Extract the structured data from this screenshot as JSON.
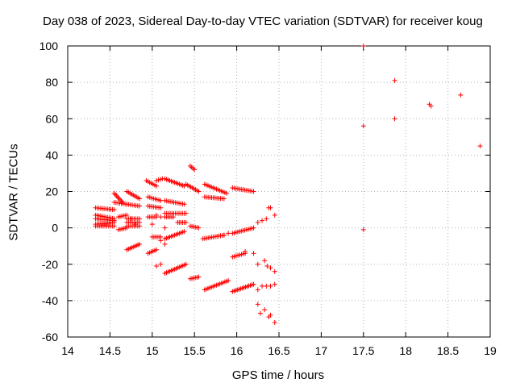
{
  "chart_data": {
    "type": "scatter",
    "title": "Day 038 of 2023, Sidereal Day-to-day VTEC variation (SDTVAR) for receiver koug",
    "xlabel": "GPS time / hours",
    "ylabel": "SDTVAR / TECUs",
    "xlim": [
      14,
      19
    ],
    "ylim": [
      -60,
      100
    ],
    "xticks": [
      14,
      14.5,
      15,
      15.5,
      16,
      16.5,
      17,
      17.5,
      18,
      18.5,
      19
    ],
    "yticks": [
      -60,
      -40,
      -20,
      0,
      20,
      40,
      60,
      80,
      100
    ],
    "grid": true,
    "marker": "+",
    "color": "#ff0000",
    "segments": [
      {
        "x0": 14.33,
        "y0": 11,
        "x1": 14.55,
        "y1": 10
      },
      {
        "x0": 14.33,
        "y0": 7,
        "x1": 14.55,
        "y1": 5
      },
      {
        "x0": 14.33,
        "y0": 5,
        "x1": 14.55,
        "y1": 4
      },
      {
        "x0": 14.33,
        "y0": 2,
        "x1": 14.55,
        "y1": 3
      },
      {
        "x0": 14.33,
        "y0": 1,
        "x1": 14.55,
        "y1": 1
      },
      {
        "x0": 14.55,
        "y0": 19,
        "x1": 14.65,
        "y1": 14
      },
      {
        "x0": 14.55,
        "y0": 14,
        "x1": 14.7,
        "y1": 13
      },
      {
        "x0": 14.6,
        "y0": 6,
        "x1": 14.7,
        "y1": 7
      },
      {
        "x0": 14.6,
        "y0": -1,
        "x1": 14.7,
        "y1": 0
      },
      {
        "x0": 14.7,
        "y0": 20,
        "x1": 14.85,
        "y1": 16
      },
      {
        "x0": 14.7,
        "y0": 13,
        "x1": 14.85,
        "y1": 12
      },
      {
        "x0": 14.7,
        "y0": 5,
        "x1": 14.85,
        "y1": 5
      },
      {
        "x0": 14.7,
        "y0": 3,
        "x1": 14.85,
        "y1": 3
      },
      {
        "x0": 14.7,
        "y0": 1,
        "x1": 14.85,
        "y1": 1
      },
      {
        "x0": 14.7,
        "y0": -12,
        "x1": 14.85,
        "y1": -9
      },
      {
        "x0": 14.95,
        "y0": 17,
        "x1": 15.1,
        "y1": 15
      },
      {
        "x0": 14.95,
        "y0": 12,
        "x1": 15.1,
        "y1": 11
      },
      {
        "x0": 14.95,
        "y0": 6,
        "x1": 15.05,
        "y1": 6
      },
      {
        "x0": 14.95,
        "y0": -14,
        "x1": 15.05,
        "y1": -12
      },
      {
        "x0": 15.0,
        "y0": -5,
        "x1": 15.1,
        "y1": -5
      },
      {
        "x0": 14.93,
        "y0": 26,
        "x1": 15.05,
        "y1": 23
      },
      {
        "x0": 15.05,
        "y0": 26,
        "x1": 15.12,
        "y1": 27
      },
      {
        "x0": 15.15,
        "y0": 27,
        "x1": 15.38,
        "y1": 23
      },
      {
        "x0": 15.15,
        "y0": 15,
        "x1": 15.38,
        "y1": 13
      },
      {
        "x0": 15.15,
        "y0": 8,
        "x1": 15.4,
        "y1": 8
      },
      {
        "x0": 15.15,
        "y0": 6,
        "x1": 15.25,
        "y1": 6
      },
      {
        "x0": 15.3,
        "y0": 3,
        "x1": 15.4,
        "y1": 3
      },
      {
        "x0": 15.15,
        "y0": -6,
        "x1": 15.38,
        "y1": -2
      },
      {
        "x0": 15.15,
        "y0": -25,
        "x1": 15.4,
        "y1": -20
      },
      {
        "x0": 15.45,
        "y0": 34,
        "x1": 15.5,
        "y1": 32
      },
      {
        "x0": 15.4,
        "y0": 24,
        "x1": 15.55,
        "y1": 20
      },
      {
        "x0": 15.45,
        "y0": 1,
        "x1": 15.55,
        "y1": 0
      },
      {
        "x0": 15.45,
        "y0": -28,
        "x1": 15.55,
        "y1": -27
      },
      {
        "x0": 15.62,
        "y0": 24,
        "x1": 15.88,
        "y1": 19
      },
      {
        "x0": 15.62,
        "y0": 17,
        "x1": 15.85,
        "y1": 16
      },
      {
        "x0": 15.6,
        "y0": -6,
        "x1": 15.85,
        "y1": -4
      },
      {
        "x0": 15.62,
        "y0": -34,
        "x1": 15.9,
        "y1": -29
      },
      {
        "x0": 15.95,
        "y0": 22,
        "x1": 16.2,
        "y1": 20
      },
      {
        "x0": 15.95,
        "y0": -3,
        "x1": 16.2,
        "y1": 0
      },
      {
        "x0": 15.95,
        "y0": -16,
        "x1": 16.1,
        "y1": -14
      },
      {
        "x0": 15.95,
        "y0": -35,
        "x1": 16.2,
        "y1": -31
      }
    ],
    "points": [
      [
        14.75,
        5
      ],
      [
        14.8,
        2
      ],
      [
        15.1,
        -7
      ],
      [
        15.15,
        -9
      ],
      [
        15.1,
        -20
      ],
      [
        15.05,
        -21
      ],
      [
        15.05,
        7
      ],
      [
        15.0,
        2
      ],
      [
        15.1,
        6
      ],
      [
        15.15,
        0
      ],
      [
        15.85,
        -4
      ],
      [
        15.9,
        -3
      ],
      [
        16.1,
        -13
      ],
      [
        16.2,
        -14
      ],
      [
        16.25,
        3
      ],
      [
        16.3,
        4
      ],
      [
        16.35,
        5
      ],
      [
        16.4,
        11
      ],
      [
        16.38,
        11
      ],
      [
        16.45,
        7
      ],
      [
        16.25,
        -20
      ],
      [
        16.33,
        -18
      ],
      [
        16.36,
        -21
      ],
      [
        16.4,
        -22
      ],
      [
        16.45,
        -24
      ],
      [
        16.25,
        -34
      ],
      [
        16.3,
        -32
      ],
      [
        16.35,
        -32
      ],
      [
        16.4,
        -32
      ],
      [
        16.45,
        -31
      ],
      [
        16.25,
        -42
      ],
      [
        16.28,
        -47
      ],
      [
        16.33,
        -45
      ],
      [
        16.38,
        -49
      ],
      [
        16.4,
        -48
      ],
      [
        16.45,
        -52
      ],
      [
        17.5,
        100
      ],
      [
        17.5,
        56
      ],
      [
        17.5,
        -1
      ],
      [
        17.87,
        81
      ],
      [
        17.87,
        60
      ],
      [
        18.28,
        68
      ],
      [
        18.3,
        67
      ],
      [
        18.65,
        73
      ],
      [
        18.88,
        45
      ]
    ]
  }
}
